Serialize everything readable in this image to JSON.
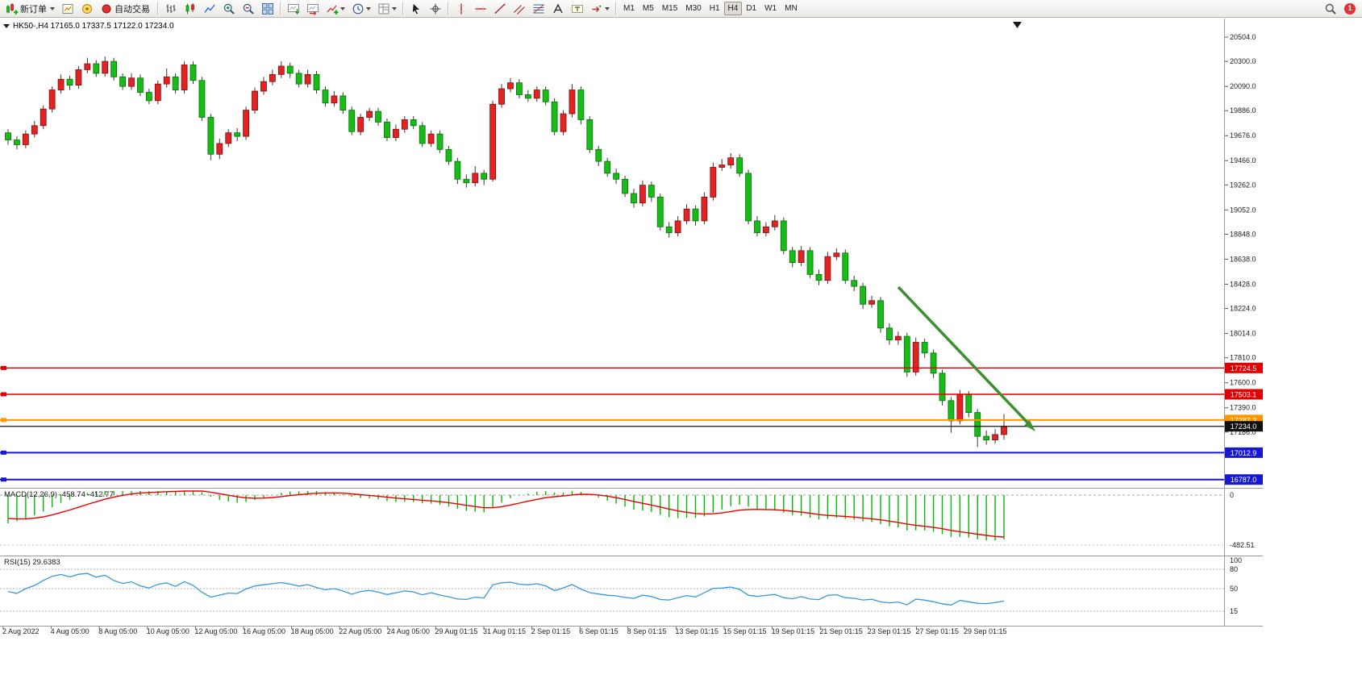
{
  "toolbar": {
    "timeframes": [
      "M1",
      "M5",
      "M15",
      "M30",
      "H1",
      "H4",
      "D1",
      "W1",
      "MN"
    ],
    "active_timeframe": "H4",
    "notification_count": "1",
    "items": [
      {
        "type": "button",
        "id": "new-order",
        "icon": "new-order",
        "label": "新订单",
        "dropdown": true
      },
      {
        "type": "button",
        "id": "new-chart",
        "icon": "new-chart"
      },
      {
        "type": "button",
        "id": "profiles",
        "icon": "profiles"
      },
      {
        "type": "button",
        "id": "autotrading",
        "icon": "autotrading",
        "label": "自动交易"
      },
      {
        "type": "sep"
      },
      {
        "type": "button",
        "id": "bar-chart",
        "icon": "bar-chart"
      },
      {
        "type": "button",
        "id": "candlestick-chart",
        "icon": "candlestick-chart"
      },
      {
        "type": "button",
        "id": "line-chart",
        "icon": "line-chart"
      },
      {
        "type": "button",
        "id": "zoom-in",
        "icon": "zoom-in"
      },
      {
        "type": "button",
        "id": "zoom-out",
        "icon": "zoom-out"
      },
      {
        "type": "button",
        "id": "tile-windows",
        "icon": "tile-windows"
      },
      {
        "type": "sep"
      },
      {
        "type": "button",
        "id": "auto-scroll",
        "icon": "auto-scroll"
      },
      {
        "type": "button",
        "id": "chart-shift",
        "icon": "chart-shift"
      },
      {
        "type": "button",
        "id": "indicators",
        "icon": "indicators",
        "dropdown": true
      },
      {
        "type": "button",
        "id": "periods",
        "icon": "clock",
        "dropdown": true
      },
      {
        "type": "button",
        "id": "templates",
        "icon": "template",
        "dropdown": true
      },
      {
        "type": "sep"
      },
      {
        "type": "button",
        "id": "cursor",
        "icon": "cursor"
      },
      {
        "type": "button",
        "id": "crosshair",
        "icon": "crosshair"
      },
      {
        "type": "sep"
      },
      {
        "type": "button",
        "id": "vertical-line",
        "icon": "vertical-line"
      },
      {
        "type": "button",
        "id": "horizontal-line",
        "icon": "horizontal-line"
      },
      {
        "type": "button",
        "id": "trendline",
        "icon": "trendline"
      },
      {
        "type": "button",
        "id": "equidistant-channel",
        "icon": "channel"
      },
      {
        "type": "button",
        "id": "fibonacci",
        "icon": "fibonacci"
      },
      {
        "type": "button",
        "id": "text",
        "icon": "text"
      },
      {
        "type": "button",
        "id": "text-label",
        "icon": "text-label"
      },
      {
        "type": "button",
        "id": "arrows",
        "icon": "arrow-tool",
        "dropdown": true
      },
      {
        "type": "sep"
      },
      {
        "type": "timeframes"
      },
      {
        "type": "spacer"
      },
      {
        "type": "button",
        "id": "search",
        "icon": "search"
      },
      {
        "type": "badge",
        "id": "notifications"
      }
    ]
  },
  "chart": {
    "title": "HK50-,H4 17165.0 17337.5 17122.0 17234.0",
    "up_color": "#e32222",
    "down_color": "#16bd16",
    "price_axis_ticks": [
      "20504.0",
      "20300.0",
      "20090.0",
      "19886.0",
      "19676.0",
      "19466.0",
      "19262.0",
      "19052.0",
      "18848.0",
      "18638.0",
      "18428.0",
      "18224.0",
      "18014.0",
      "17810.0",
      "17600.0",
      "17390.0",
      "17186.0"
    ],
    "hlines": [
      {
        "label": "17724.5",
        "price": 17724.5,
        "color": "#e00000",
        "width": 1.4
      },
      {
        "label": "17503.1",
        "price": 17503.1,
        "color": "#e00000",
        "width": 1.4
      },
      {
        "label": "17287.3",
        "price": 17287.3,
        "color": "#ff9500",
        "width": 2
      },
      {
        "label": "17012.9",
        "price": 17012.9,
        "color": "#1717d6",
        "width": 2
      },
      {
        "label": "16787.0",
        "price": 16787.0,
        "color": "#1717d6",
        "width": 2
      }
    ],
    "current_price": {
      "label": "17234.0",
      "color": "#111111"
    },
    "trend_arrow_color": "#3a9130",
    "x_axis_labels": [
      "2 Aug 2022",
      "4 Aug 05:00",
      "8 Aug 05:00",
      "10 Aug 05:00",
      "12 Aug 05:00",
      "16 Aug 05:00",
      "18 Aug 05:00",
      "22 Aug 05:00",
      "24 Aug 05:00",
      "29 Aug 01:15",
      "31 Aug 01:15",
      "2 Sep 01:15",
      "6 Sep 01:15",
      "8 Sep 01:15",
      "13 Sep 01:15",
      "15 Sep 01:15",
      "19 Sep 01:15",
      "21 Sep 01:15",
      "23 Sep 01:15",
      "27 Sep 01:15",
      "29 Sep 01:15"
    ]
  },
  "indicators": {
    "macd": {
      "label": "MACD(12,26,9) -458.74 -412.77",
      "axis_labels": [
        "0",
        "-482.51"
      ],
      "histogram_color": "#00bb00",
      "signal_color": "#ee0000"
    },
    "rsi": {
      "label": "RSI(15) 29.6383",
      "level_labels": [
        "100",
        "80",
        "50",
        "15"
      ],
      "line_color": "#3898db"
    }
  },
  "chart_data": {
    "type": "candlestick",
    "symbol": "HK50-",
    "timeframe": "H4",
    "last_ohlc": {
      "open": 17165.0,
      "high": 17337.5,
      "low": 17122.0,
      "close": 17234.0
    },
    "price_range_visible": [
      16787.0,
      20504.0
    ],
    "horizontal_levels": [
      17724.5,
      17503.1,
      17287.3,
      17012.9,
      16787.0
    ],
    "macd": {
      "fast": 12,
      "slow": 26,
      "signal_period": 9,
      "value": -458.74,
      "signal_value": -412.77,
      "axis_min": -482.51
    },
    "rsi": {
      "period": 15,
      "value": 29.6383,
      "levels": [
        80,
        50,
        15
      ]
    },
    "candles": [
      [
        19700,
        19730,
        19600,
        19640
      ],
      [
        19640,
        19670,
        19560,
        19600
      ],
      [
        19600,
        19720,
        19570,
        19690
      ],
      [
        19690,
        19800,
        19660,
        19760
      ],
      [
        19760,
        19930,
        19730,
        19900
      ],
      [
        19900,
        20090,
        19870,
        20060
      ],
      [
        20060,
        20190,
        20030,
        20150
      ],
      [
        20150,
        20180,
        20060,
        20100
      ],
      [
        20100,
        20260,
        20070,
        20230
      ],
      [
        20230,
        20330,
        20200,
        20280
      ],
      [
        20280,
        20310,
        20170,
        20200
      ],
      [
        20200,
        20340,
        20170,
        20300
      ],
      [
        20300,
        20330,
        20140,
        20170
      ],
      [
        20170,
        20200,
        20060,
        20090
      ],
      [
        20090,
        20200,
        20060,
        20160
      ],
      [
        20160,
        20190,
        20010,
        20040
      ],
      [
        20040,
        20070,
        19940,
        19970
      ],
      [
        19970,
        20140,
        19940,
        20110
      ],
      [
        20110,
        20240,
        20080,
        20170
      ],
      [
        20170,
        20200,
        20030,
        20060
      ],
      [
        20060,
        20300,
        20030,
        20270
      ],
      [
        20270,
        20300,
        20110,
        20140
      ],
      [
        20140,
        20170,
        19800,
        19830
      ],
      [
        19830,
        19860,
        19470,
        19520
      ],
      [
        19520,
        19650,
        19480,
        19610
      ],
      [
        19610,
        19730,
        19580,
        19700
      ],
      [
        19700,
        19740,
        19630,
        19670
      ],
      [
        19670,
        19920,
        19640,
        19890
      ],
      [
        19890,
        20080,
        19860,
        20050
      ],
      [
        20050,
        20170,
        20020,
        20130
      ],
      [
        20130,
        20230,
        20100,
        20190
      ],
      [
        20190,
        20300,
        20160,
        20260
      ],
      [
        20260,
        20290,
        20160,
        20200
      ],
      [
        20200,
        20230,
        20080,
        20110
      ],
      [
        20110,
        20230,
        20080,
        20190
      ],
      [
        20190,
        20220,
        20030,
        20060
      ],
      [
        20060,
        20090,
        19920,
        19950
      ],
      [
        19950,
        20050,
        19920,
        20010
      ],
      [
        20010,
        20040,
        19860,
        19890
      ],
      [
        19890,
        19920,
        19680,
        19710
      ],
      [
        19710,
        19860,
        19680,
        19830
      ],
      [
        19830,
        19910,
        19800,
        19880
      ],
      [
        19880,
        19910,
        19760,
        19790
      ],
      [
        19790,
        19820,
        19630,
        19660
      ],
      [
        19660,
        19770,
        19630,
        19730
      ],
      [
        19730,
        19840,
        19700,
        19810
      ],
      [
        19810,
        19840,
        19730,
        19760
      ],
      [
        19760,
        19790,
        19580,
        19610
      ],
      [
        19610,
        19720,
        19580,
        19690
      ],
      [
        19690,
        19720,
        19530,
        19560
      ],
      [
        19560,
        19590,
        19430,
        19460
      ],
      [
        19460,
        19490,
        19270,
        19310
      ],
      [
        19310,
        19350,
        19240,
        19280
      ],
      [
        19280,
        19420,
        19250,
        19360
      ],
      [
        19360,
        19390,
        19260,
        19310
      ],
      [
        19310,
        19970,
        19290,
        19940
      ],
      [
        19940,
        20110,
        19910,
        20070
      ],
      [
        20070,
        20160,
        20040,
        20120
      ],
      [
        20120,
        20150,
        19990,
        20020
      ],
      [
        20020,
        20060,
        19960,
        19990
      ],
      [
        19990,
        20090,
        19960,
        20060
      ],
      [
        20060,
        20090,
        19930,
        19960
      ],
      [
        19960,
        19990,
        19680,
        19710
      ],
      [
        19710,
        19890,
        19680,
        19860
      ],
      [
        19860,
        20110,
        19830,
        20060
      ],
      [
        20060,
        20090,
        19770,
        19810
      ],
      [
        19810,
        19840,
        19530,
        19560
      ],
      [
        19560,
        19590,
        19420,
        19460
      ],
      [
        19460,
        19490,
        19330,
        19360
      ],
      [
        19360,
        19400,
        19270,
        19310
      ],
      [
        19310,
        19340,
        19160,
        19190
      ],
      [
        19190,
        19230,
        19070,
        19110
      ],
      [
        19110,
        19300,
        19080,
        19260
      ],
      [
        19260,
        19290,
        19120,
        19160
      ],
      [
        19160,
        19190,
        18880,
        18910
      ],
      [
        18910,
        18950,
        18820,
        18860
      ],
      [
        18860,
        19000,
        18830,
        18960
      ],
      [
        18960,
        19100,
        18930,
        19060
      ],
      [
        19060,
        19090,
        18920,
        18960
      ],
      [
        18960,
        19200,
        18930,
        19160
      ],
      [
        19160,
        19450,
        19130,
        19410
      ],
      [
        19410,
        19480,
        19380,
        19430
      ],
      [
        19430,
        19530,
        19400,
        19490
      ],
      [
        19490,
        19520,
        19330,
        19360
      ],
      [
        19360,
        19390,
        18930,
        18960
      ],
      [
        18960,
        19000,
        18830,
        18860
      ],
      [
        18860,
        18950,
        18830,
        18910
      ],
      [
        18910,
        19010,
        18880,
        18960
      ],
      [
        18960,
        18990,
        18680,
        18710
      ],
      [
        18710,
        18740,
        18570,
        18610
      ],
      [
        18610,
        18750,
        18580,
        18710
      ],
      [
        18710,
        18740,
        18480,
        18510
      ],
      [
        18510,
        18550,
        18420,
        18460
      ],
      [
        18460,
        18700,
        18430,
        18660
      ],
      [
        18660,
        18730,
        18630,
        18690
      ],
      [
        18690,
        18720,
        18430,
        18460
      ],
      [
        18460,
        18500,
        18370,
        18410
      ],
      [
        18410,
        18440,
        18220,
        18260
      ],
      [
        18260,
        18330,
        18230,
        18290
      ],
      [
        18290,
        18320,
        18020,
        18060
      ],
      [
        18060,
        18100,
        17920,
        17960
      ],
      [
        17960,
        18030,
        17920,
        17990
      ],
      [
        17990,
        18020,
        17650,
        17690
      ],
      [
        17690,
        17980,
        17660,
        17940
      ],
      [
        17940,
        17970,
        17810,
        17850
      ],
      [
        17850,
        17880,
        17640,
        17680
      ],
      [
        17680,
        17710,
        17410,
        17450
      ],
      [
        17450,
        17480,
        17180,
        17280
      ],
      [
        17280,
        17540,
        17250,
        17500
      ],
      [
        17500,
        17530,
        17310,
        17350
      ],
      [
        17350,
        17380,
        17060,
        17150
      ],
      [
        17150,
        17200,
        17080,
        17120
      ],
      [
        17120,
        17210,
        17090,
        17165
      ],
      [
        17165,
        17337.5,
        17122,
        17234
      ]
    ]
  }
}
